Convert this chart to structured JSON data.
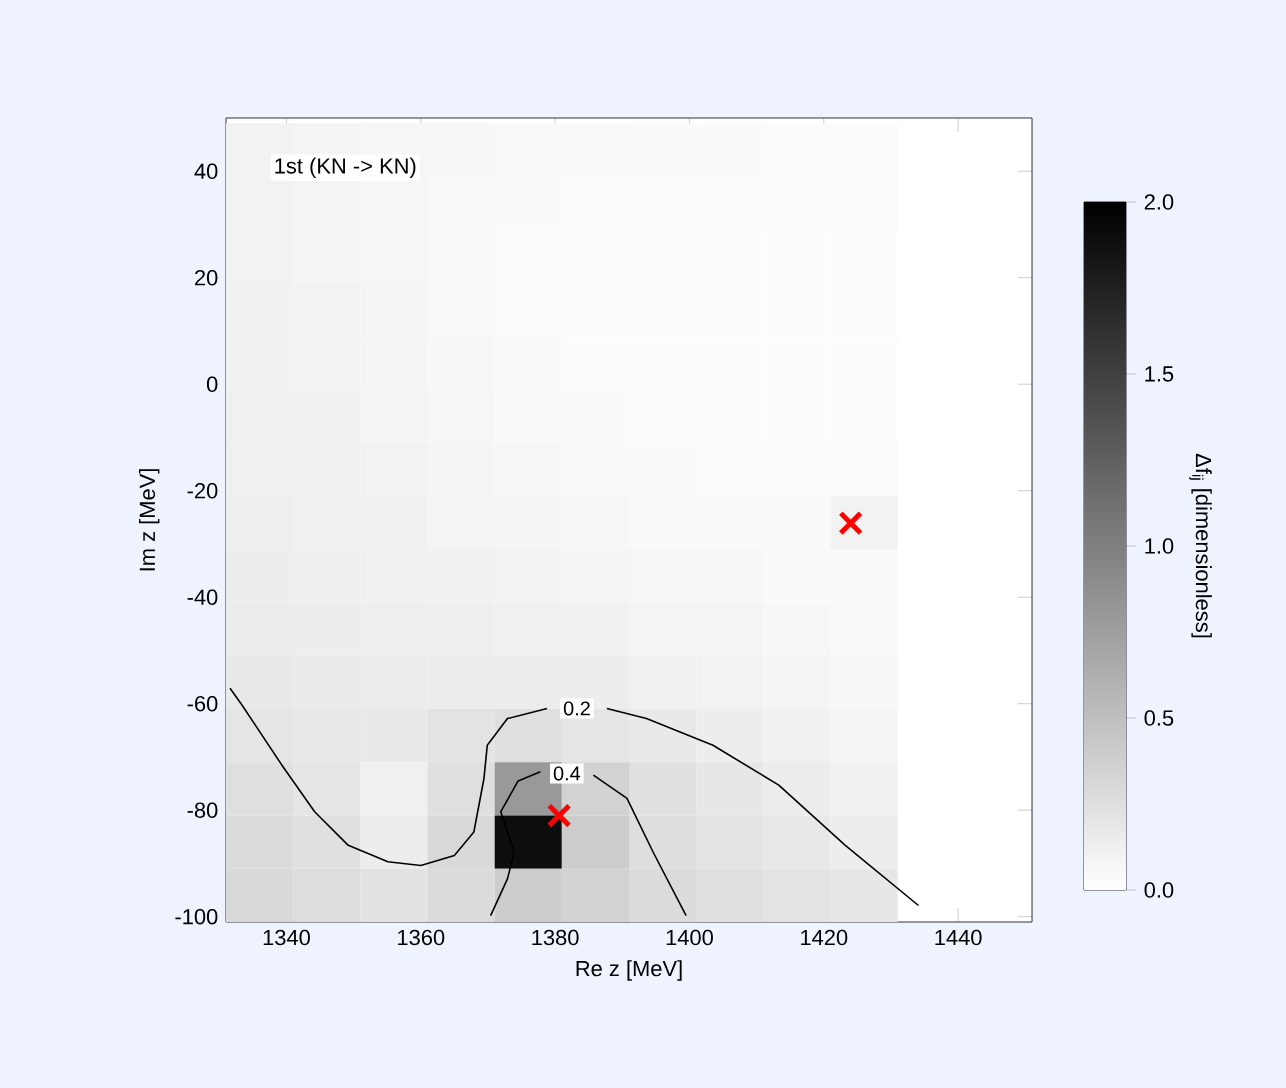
{
  "chart_data": {
    "type": "heatmap",
    "xlabel": "Re z [MeV]",
    "ylabel": "Im z [MeV]",
    "clabel": "Δf$_{ij}$ [dimensionless]",
    "annotations": [
      "1st (KN -> KN)"
    ],
    "xlim": [
      1331,
      1451
    ],
    "ylim": [
      -101,
      50
    ],
    "xticks": [
      1340,
      1360,
      1380,
      1400,
      1420,
      1440
    ],
    "yticks": [
      -100,
      -80,
      -60,
      -40,
      -20,
      0,
      20,
      40
    ],
    "clim": [
      0,
      2
    ],
    "cticks": [
      {
        "value": 0,
        "label": "0.0"
      },
      {
        "value": 0.5,
        "label": "0.5"
      },
      {
        "value": 1,
        "label": "1.0"
      },
      {
        "value": 1.5,
        "label": "1.5"
      },
      {
        "value": 2,
        "label": "2.0"
      }
    ],
    "x": [
      1336,
      1346,
      1356,
      1366,
      1376,
      1386,
      1396,
      1406,
      1416,
      1426
    ],
    "y": [
      44,
      34,
      24,
      14,
      4,
      -6,
      -16,
      -26,
      -36,
      -46,
      -56,
      -66,
      -76,
      -86,
      -96
    ],
    "cells": [
      [
        0.1,
        0.09,
        0.07,
        0.06,
        0.05,
        0.05,
        0.04,
        0.04,
        0.03,
        0.03
      ],
      [
        0.1,
        0.09,
        0.07,
        0.05,
        0.04,
        0.03,
        0.03,
        0.03,
        0.03,
        0.03
      ],
      [
        0.1,
        0.09,
        0.07,
        0.05,
        0.03,
        0.02,
        0.02,
        0.02,
        0.02,
        0.02
      ],
      [
        0.11,
        0.1,
        0.08,
        0.05,
        0.03,
        0.02,
        0.02,
        0.02,
        0.02,
        0.02
      ],
      [
        0.11,
        0.1,
        0.08,
        0.06,
        0.04,
        0.02,
        0.02,
        0.02,
        0.02,
        0.02
      ],
      [
        0.12,
        0.11,
        0.09,
        0.07,
        0.05,
        0.04,
        0.03,
        0.02,
        0.02,
        0.02
      ],
      [
        0.12,
        0.11,
        0.1,
        0.08,
        0.06,
        0.05,
        0.04,
        0.03,
        0.03,
        0.03
      ],
      [
        0.13,
        0.12,
        0.11,
        0.09,
        0.08,
        0.06,
        0.05,
        0.04,
        0.05,
        0.1
      ],
      [
        0.14,
        0.13,
        0.12,
        0.11,
        0.1,
        0.08,
        0.07,
        0.06,
        0.05,
        0.04
      ],
      [
        0.15,
        0.14,
        0.13,
        0.13,
        0.12,
        0.11,
        0.09,
        0.08,
        0.06,
        0.05
      ],
      [
        0.17,
        0.16,
        0.15,
        0.15,
        0.15,
        0.14,
        0.12,
        0.1,
        0.08,
        0.06
      ],
      [
        0.2,
        0.18,
        0.17,
        0.22,
        0.25,
        0.2,
        0.17,
        0.14,
        0.11,
        0.08
      ],
      [
        0.25,
        0.2,
        0.12,
        0.25,
        0.8,
        0.35,
        0.24,
        0.19,
        0.15,
        0.11
      ],
      [
        0.28,
        0.24,
        0.15,
        0.3,
        1.9,
        0.4,
        0.26,
        0.22,
        0.18,
        0.14
      ],
      [
        0.3,
        0.27,
        0.23,
        0.28,
        0.4,
        0.35,
        0.28,
        0.25,
        0.22,
        0.19
      ]
    ],
    "series": [
      {
        "name": "0.2",
        "type": "line",
        "color": "#000000",
        "x": [
          1331.6,
          1333.4,
          1339.3,
          1344.2,
          1349.2,
          1355.1,
          1360.0,
          1365.0,
          1367.9,
          1369.4,
          1369.9,
          1372.9,
          1378.8,
          1383.7,
          1387.7,
          1393.6,
          1403.5,
          1413.3,
          1423.2,
          1434.1
        ],
        "values": [
          -57.1,
          -60.3,
          -71.5,
          -80.3,
          -86.6,
          -89.7,
          -90.4,
          -88.5,
          -84.1,
          -74.1,
          -67.8,
          -62.8,
          -60.9,
          null,
          -60.9,
          -62.8,
          -67.8,
          -75.3,
          -86.6,
          -97.9
        ]
      },
      {
        "name": "0.4",
        "type": "line",
        "color": "#000000",
        "x": [
          1370.4,
          1372.9,
          1373.9,
          1371.9,
          1374.5,
          1377.8,
          1379.8,
          1385.7,
          1390.7,
          1394.6,
          1399.5
        ],
        "values": [
          -99.8,
          -92.9,
          -87.9,
          -80.3,
          -74.5,
          -72.8,
          null,
          -73.4,
          -77.8,
          -87.9,
          -99.8
        ]
      },
      {
        "type": "scatter",
        "marker": "cross",
        "color": "#ff0000",
        "x": [
          1380.6,
          1424.0
        ],
        "values": [
          -81.0,
          -26.1
        ]
      }
    ],
    "grid": false
  }
}
